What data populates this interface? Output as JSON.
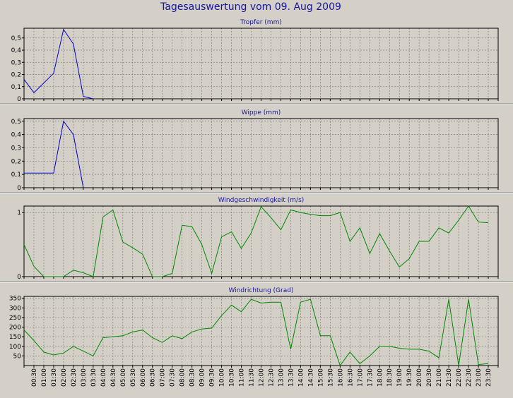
{
  "title": "Tagesauswertung vom 09. Aug 2009",
  "x_labels": [
    "00:30",
    "01:00",
    "01:30",
    "02:00",
    "02:30",
    "03:00",
    "03:30",
    "04:00",
    "04:30",
    "05:00",
    "05:30",
    "06:00",
    "06:30",
    "07:00",
    "07:30",
    "08:00",
    "08:30",
    "09:00",
    "09:30",
    "10:00",
    "10:30",
    "11:00",
    "11:30",
    "12:00",
    "12:30",
    "13:00",
    "13:30",
    "14:00",
    "14:30",
    "15:00",
    "15:30",
    "16:00",
    "16:30",
    "17:00",
    "17:30",
    "18:00",
    "18:30",
    "19:00",
    "19:30",
    "20:00",
    "20:30",
    "21:00",
    "21:30",
    "22:00",
    "22:30",
    "23:00",
    "23:30"
  ],
  "chart_data": [
    {
      "type": "line",
      "title": "Tropfer (mm)",
      "color": "#0000cc",
      "ylim": [
        0,
        0.58
      ],
      "yticks": [
        "0",
        "0,1",
        "0,2",
        "0,3",
        "0,4",
        "0,5"
      ],
      "ytick_values": [
        0,
        0.1,
        0.2,
        0.3,
        0.4,
        0.5
      ],
      "x": [
        0,
        0.5,
        1.5,
        2,
        2.5,
        3,
        3.5
      ],
      "y": [
        0.16,
        0.05,
        0.21,
        0.57,
        0.45,
        0.02,
        0.0
      ]
    },
    {
      "type": "line",
      "title": "Wippe (mm)",
      "color": "#0000cc",
      "ylim": [
        0,
        0.52
      ],
      "yticks": [
        "0",
        "0,1",
        "0,2",
        "0,3",
        "0,4",
        "0,5"
      ],
      "ytick_values": [
        0,
        0.1,
        0.2,
        0.3,
        0.4,
        0.5
      ],
      "x": [
        0,
        1.5,
        2,
        2.5,
        3
      ],
      "y": [
        0.11,
        0.11,
        0.5,
        0.4,
        0.0
      ]
    },
    {
      "type": "line",
      "title": "Windgeschwindigkeit (m/s)",
      "color": "#008800",
      "ylim": [
        0,
        1.1
      ],
      "yticks": [
        "0",
        "1"
      ],
      "ytick_values": [
        0,
        1
      ],
      "x": [
        0,
        0.5,
        1,
        1.5,
        2,
        2.5,
        3,
        3.5,
        4,
        4.5,
        5,
        5.5,
        6,
        6.5,
        7,
        7.5,
        8,
        8.5,
        9,
        9.5,
        10,
        10.5,
        11,
        11.5,
        12,
        12.5,
        13,
        13.5,
        14,
        14.5,
        15,
        15.5,
        16,
        16.5,
        17,
        17.5,
        18,
        18.5,
        19,
        19.5,
        20,
        20.5,
        21,
        21.5,
        22,
        22.5,
        23,
        23.5
      ],
      "y": [
        0.5,
        0.16,
        0,
        0,
        0,
        0.1,
        0.06,
        0,
        0.93,
        1.04,
        0.54,
        0.45,
        0.35,
        0,
        0,
        0.05,
        0.8,
        0.78,
        0.5,
        0.05,
        0.62,
        0.7,
        0.44,
        0.68,
        1.09,
        0.92,
        0.73,
        1.04,
        1.0,
        0.97,
        0.95,
        0.95,
        1.0,
        0.55,
        0.76,
        0.36,
        0.67,
        0.4,
        0.15,
        0.28,
        0.55,
        0.55,
        0.76,
        0.68,
        0.88,
        1.1,
        0.85,
        0.84
      ]
    },
    {
      "type": "line",
      "title": "Windrichtung (Grad)",
      "color": "#008800",
      "ylim": [
        0,
        360
      ],
      "yticks": [
        "50",
        "100",
        "150",
        "200",
        "250",
        "300",
        "350"
      ],
      "ytick_values": [
        50,
        100,
        150,
        200,
        250,
        300,
        350
      ],
      "x": [
        0,
        0.5,
        1,
        1.5,
        2,
        2.5,
        3,
        3.5,
        4,
        4.5,
        5,
        5.5,
        6,
        6.5,
        7,
        7.5,
        8,
        8.5,
        9,
        9.5,
        10,
        10.5,
        11,
        11.5,
        12,
        12.5,
        13,
        13.5,
        14,
        14.5,
        15,
        15.5,
        16,
        16.5,
        17,
        17.5,
        18,
        18.5,
        19,
        19.5,
        20,
        20.5,
        21,
        21.5,
        22,
        22.5,
        23,
        23.5
      ],
      "y": [
        185,
        130,
        70,
        55,
        65,
        100,
        75,
        50,
        145,
        150,
        155,
        175,
        185,
        145,
        120,
        155,
        140,
        175,
        190,
        195,
        260,
        315,
        280,
        345,
        325,
        330,
        330,
        85,
        330,
        345,
        155,
        155,
        0,
        70,
        10,
        50,
        100,
        100,
        90,
        85,
        85,
        75,
        40,
        345,
        0,
        345,
        5,
        10
      ]
    }
  ]
}
